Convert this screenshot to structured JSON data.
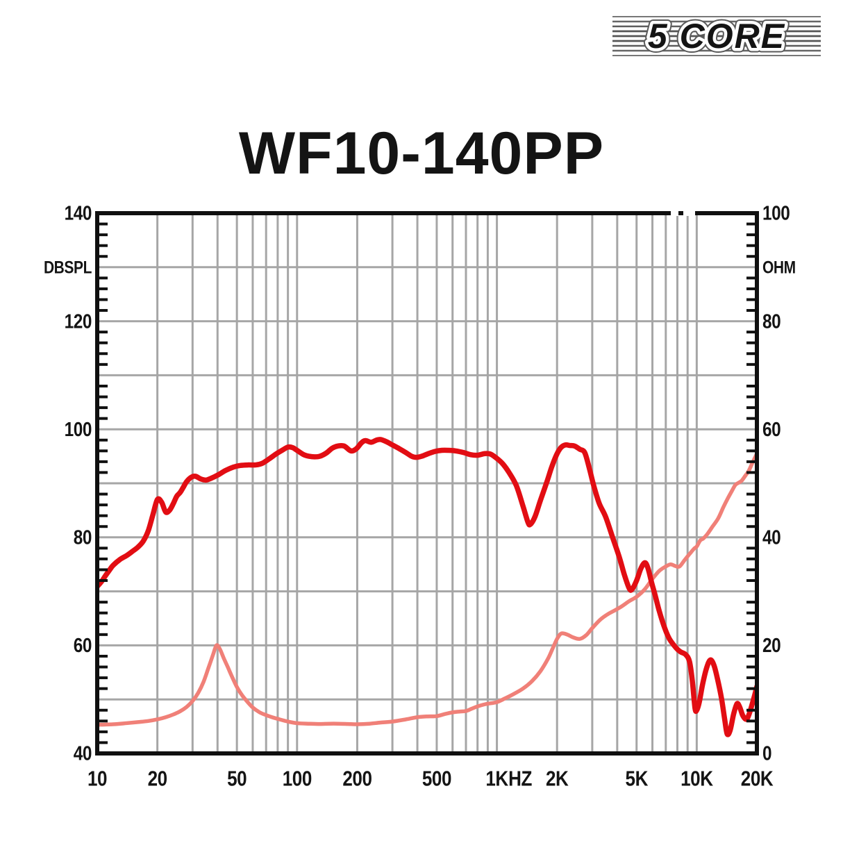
{
  "header": {
    "title": "WF10-140PP"
  },
  "brand": {
    "name": "5 CORE",
    "color": "#e0161c"
  },
  "chart_data": {
    "type": "line",
    "x_axis": {
      "scale": "log",
      "min": 10,
      "max": 20000,
      "unit_label": "HZ",
      "tick_values": [
        10,
        20,
        50,
        100,
        200,
        500,
        1000,
        2000,
        5000,
        10000,
        20000
      ],
      "tick_labels": [
        "10",
        "20",
        "50",
        "100",
        "200",
        "500",
        "1K",
        "2K",
        "5K",
        "10K",
        "20K"
      ]
    },
    "y_left": {
      "label": "DBSPL",
      "min": 40,
      "max": 140,
      "grid_step": 10,
      "minor_tick_step": 2,
      "tick_values": [
        140,
        120,
        100,
        80,
        60,
        40
      ],
      "tick_labels": [
        "140",
        "120",
        "100",
        "80",
        "60",
        "40"
      ]
    },
    "y_right": {
      "label": "OHM",
      "min": 0,
      "max": 100,
      "grid_step": 10,
      "minor_tick_step": 2,
      "tick_values": [
        100,
        80,
        60,
        40,
        20,
        0
      ],
      "tick_labels": [
        "100",
        "80",
        "60",
        "40",
        "20",
        "0"
      ]
    },
    "grid_color": "#a6a6a6",
    "axis_color": "#101010",
    "series": [
      {
        "name": "impedance-curve",
        "axis": "right",
        "unit": "ohm",
        "color": "#f08078",
        "width": 5.5,
        "points": [
          [
            10,
            5.3
          ],
          [
            12,
            5.4
          ],
          [
            14,
            5.6
          ],
          [
            16,
            5.8
          ],
          [
            18,
            6.0
          ],
          [
            20,
            6.3
          ],
          [
            22,
            6.7
          ],
          [
            24,
            7.2
          ],
          [
            26,
            7.8
          ],
          [
            28,
            8.6
          ],
          [
            30,
            9.7
          ],
          [
            32,
            11.2
          ],
          [
            34,
            13.2
          ],
          [
            36,
            15.8
          ],
          [
            38,
            18.3
          ],
          [
            39.5,
            20.0
          ],
          [
            41,
            19.4
          ],
          [
            43,
            17.6
          ],
          [
            45,
            16.0
          ],
          [
            47,
            14.4
          ],
          [
            50,
            12.3
          ],
          [
            53,
            10.8
          ],
          [
            56,
            9.7
          ],
          [
            60,
            8.5
          ],
          [
            65,
            7.6
          ],
          [
            70,
            7.1
          ],
          [
            75,
            6.7
          ],
          [
            80,
            6.4
          ],
          [
            90,
            5.9
          ],
          [
            100,
            5.6
          ],
          [
            115,
            5.5
          ],
          [
            130,
            5.45
          ],
          [
            145,
            5.5
          ],
          [
            160,
            5.5
          ],
          [
            180,
            5.45
          ],
          [
            200,
            5.4
          ],
          [
            230,
            5.5
          ],
          [
            260,
            5.7
          ],
          [
            300,
            5.9
          ],
          [
            350,
            6.3
          ],
          [
            400,
            6.7
          ],
          [
            450,
            6.85
          ],
          [
            500,
            6.9
          ],
          [
            550,
            7.3
          ],
          [
            600,
            7.6
          ],
          [
            650,
            7.75
          ],
          [
            700,
            7.85
          ],
          [
            750,
            8.3
          ],
          [
            800,
            8.7
          ],
          [
            850,
            9.0
          ],
          [
            900,
            9.2
          ],
          [
            1000,
            9.5
          ],
          [
            1100,
            10.2
          ],
          [
            1200,
            10.9
          ],
          [
            1350,
            12.0
          ],
          [
            1500,
            13.4
          ],
          [
            1650,
            15.2
          ],
          [
            1800,
            17.5
          ],
          [
            1900,
            19.4
          ],
          [
            2000,
            21.2
          ],
          [
            2100,
            22.2
          ],
          [
            2250,
            22.0
          ],
          [
            2400,
            21.5
          ],
          [
            2600,
            21.2
          ],
          [
            2800,
            21.9
          ],
          [
            3000,
            23.2
          ],
          [
            3300,
            24.8
          ],
          [
            3600,
            25.8
          ],
          [
            3900,
            26.5
          ],
          [
            4200,
            27.2
          ],
          [
            4600,
            28.2
          ],
          [
            5000,
            29.0
          ],
          [
            5500,
            30.4
          ],
          [
            6000,
            32.3
          ],
          [
            6500,
            33.8
          ],
          [
            7000,
            34.6
          ],
          [
            7400,
            35.0
          ],
          [
            7800,
            34.7
          ],
          [
            8200,
            34.6
          ],
          [
            8700,
            35.8
          ],
          [
            9200,
            36.9
          ],
          [
            9700,
            37.9
          ],
          [
            10000,
            38.3
          ],
          [
            10400,
            39.4
          ],
          [
            10800,
            39.8
          ],
          [
            11300,
            40.6
          ],
          [
            12000,
            42.0
          ],
          [
            12800,
            43.5
          ],
          [
            13600,
            45.6
          ],
          [
            14300,
            47.2
          ],
          [
            15000,
            48.6
          ],
          [
            15600,
            49.7
          ],
          [
            16200,
            50.1
          ],
          [
            16800,
            50.5
          ],
          [
            17500,
            51.4
          ],
          [
            18200,
            52.3
          ],
          [
            19000,
            53.8
          ],
          [
            20000,
            55.5
          ]
        ]
      },
      {
        "name": "spl-curve",
        "axis": "left",
        "unit": "dBSPL",
        "color": "#e20d13",
        "width": 7.5,
        "points": [
          [
            10,
            70.9
          ],
          [
            10.5,
            71.8
          ],
          [
            11,
            72.9
          ],
          [
            11.5,
            73.9
          ],
          [
            12,
            74.8
          ],
          [
            13,
            75.9
          ],
          [
            14,
            76.6
          ],
          [
            15,
            77.4
          ],
          [
            16,
            78.2
          ],
          [
            17,
            79.3
          ],
          [
            18,
            81.2
          ],
          [
            19,
            84.2
          ],
          [
            20,
            87.0
          ],
          [
            21,
            86.5
          ],
          [
            22,
            84.7
          ],
          [
            23,
            85.0
          ],
          [
            24,
            86.2
          ],
          [
            25,
            87.6
          ],
          [
            26,
            88.3
          ],
          [
            27,
            89.3
          ],
          [
            28,
            90.3
          ],
          [
            29.5,
            91.1
          ],
          [
            31,
            91.3
          ],
          [
            33,
            90.8
          ],
          [
            35,
            90.6
          ],
          [
            37,
            90.9
          ],
          [
            40,
            91.5
          ],
          [
            44,
            92.4
          ],
          [
            48,
            93.0
          ],
          [
            52,
            93.3
          ],
          [
            57,
            93.4
          ],
          [
            62,
            93.4
          ],
          [
            67,
            93.7
          ],
          [
            73,
            94.6
          ],
          [
            79,
            95.5
          ],
          [
            85,
            96.2
          ],
          [
            90,
            96.7
          ],
          [
            95,
            96.6
          ],
          [
            100,
            96.1
          ],
          [
            108,
            95.3
          ],
          [
            115,
            95.0
          ],
          [
            122,
            94.9
          ],
          [
            130,
            95.0
          ],
          [
            140,
            95.6
          ],
          [
            150,
            96.5
          ],
          [
            160,
            96.9
          ],
          [
            172,
            96.9
          ],
          [
            186,
            96.0
          ],
          [
            198,
            96.4
          ],
          [
            210,
            97.5
          ],
          [
            220,
            97.9
          ],
          [
            235,
            97.6
          ],
          [
            250,
            98.0
          ],
          [
            262,
            98.1
          ],
          [
            280,
            97.7
          ],
          [
            300,
            97.1
          ],
          [
            325,
            96.4
          ],
          [
            350,
            95.7
          ],
          [
            375,
            95.0
          ],
          [
            395,
            94.8
          ],
          [
            420,
            95.0
          ],
          [
            455,
            95.5
          ],
          [
            490,
            95.9
          ],
          [
            530,
            96.1
          ],
          [
            570,
            96.1
          ],
          [
            620,
            96.0
          ],
          [
            680,
            95.7
          ],
          [
            740,
            95.3
          ],
          [
            800,
            95.2
          ],
          [
            870,
            95.5
          ],
          [
            930,
            95.4
          ],
          [
            1000,
            94.6
          ],
          [
            1070,
            93.6
          ],
          [
            1150,
            92.0
          ],
          [
            1250,
            89.6
          ],
          [
            1350,
            85.8
          ],
          [
            1430,
            82.8
          ],
          [
            1470,
            82.4
          ],
          [
            1550,
            83.8
          ],
          [
            1650,
            86.8
          ],
          [
            1780,
            90.3
          ],
          [
            1880,
            93.0
          ],
          [
            1990,
            95.3
          ],
          [
            2090,
            96.6
          ],
          [
            2200,
            97.1
          ],
          [
            2320,
            97.0
          ],
          [
            2450,
            96.9
          ],
          [
            2600,
            96.3
          ],
          [
            2750,
            95.7
          ],
          [
            2900,
            92.8
          ],
          [
            3050,
            89.6
          ],
          [
            3250,
            86.3
          ],
          [
            3500,
            83.8
          ],
          [
            3800,
            79.9
          ],
          [
            4100,
            76.3
          ],
          [
            4350,
            73.0
          ],
          [
            4600,
            70.5
          ],
          [
            4750,
            70.4
          ],
          [
            5000,
            72.0
          ],
          [
            5250,
            74.2
          ],
          [
            5500,
            75.3
          ],
          [
            5700,
            74.3
          ],
          [
            5950,
            71.6
          ],
          [
            6200,
            69.2
          ],
          [
            6500,
            66.3
          ],
          [
            6900,
            63.3
          ],
          [
            7300,
            61.2
          ],
          [
            7900,
            59.5
          ],
          [
            8300,
            58.8
          ],
          [
            8800,
            58.3
          ],
          [
            9200,
            57.0
          ],
          [
            9500,
            53.5
          ],
          [
            9800,
            48.4
          ],
          [
            10000,
            48.0
          ],
          [
            10300,
            49.5
          ],
          [
            10700,
            52.8
          ],
          [
            11200,
            55.8
          ],
          [
            11700,
            57.3
          ],
          [
            12200,
            56.3
          ],
          [
            12700,
            53.8
          ],
          [
            13300,
            50.2
          ],
          [
            13800,
            46.3
          ],
          [
            14200,
            43.6
          ],
          [
            14700,
            44.3
          ],
          [
            15300,
            47.3
          ],
          [
            15900,
            49.2
          ],
          [
            16400,
            48.6
          ],
          [
            17000,
            47.0
          ],
          [
            17700,
            46.3
          ],
          [
            18300,
            47.3
          ],
          [
            19000,
            49.3
          ],
          [
            19500,
            50.8
          ],
          [
            20000,
            52.4
          ]
        ]
      }
    ]
  }
}
